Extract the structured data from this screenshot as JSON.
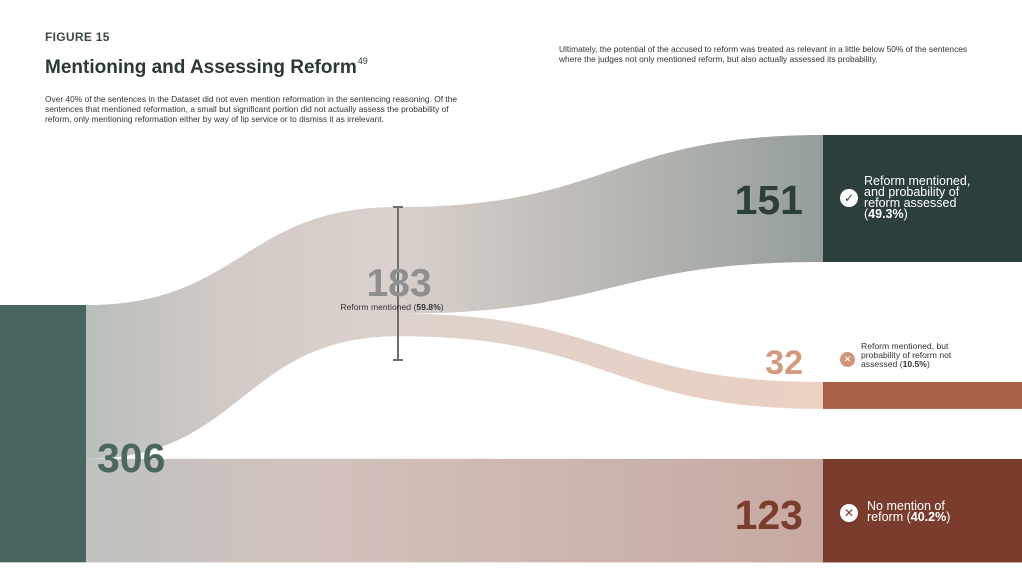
{
  "figure_label": "FIGURE 15",
  "title": "Mentioning and Assessing Reform",
  "title_footnote": "49",
  "intro_text": "Over 40% of the sentences in the Dataset did not even mention reformation in the sentencing reasoning. Of the sentences that mentioned reformation, a small but significant portion did not actually assess the probability of reform, only mentioning reformation either by way of lip service or to dismiss it as irrelevant.",
  "note_text": "Ultimately, the potential of the accused to reform was treated as relevant in a little below 50% of the sentences where the judges not only mentioned reform, but also actually assessed its probability.",
  "colors": {
    "total": "#48665f",
    "mentioned": "#d8cdc8",
    "assessed": "#2d3f3d",
    "not_assessed": "#a85f46",
    "no_mention": "#7a3c2d"
  },
  "chart_data": {
    "type": "sankey",
    "title": "Mentioning and Assessing Reform",
    "nodes": [
      {
        "id": "total",
        "value": 306,
        "value_label": "306"
      },
      {
        "id": "mentioned",
        "value": 183,
        "value_label": "183",
        "label": "Reform mentioned (",
        "pct": "59.8%"
      },
      {
        "id": "assessed",
        "value": 151,
        "value_label": "151",
        "label_l1": "Reform mentioned,",
        "label_l2": "and probability of",
        "label_l3": "reform assessed",
        "pct": "49.3%"
      },
      {
        "id": "not_assessed",
        "value": 32,
        "value_label": "32",
        "label_l1": "Reform mentioned, but",
        "label_l2": "probability of reform not",
        "label_l3": "assessed (",
        "pct": "10.5%"
      },
      {
        "id": "no_mention",
        "value": 123,
        "value_label": "123",
        "label_l1": "No mention of",
        "label_l2": "reform (",
        "pct": "40.2%"
      }
    ],
    "links": [
      {
        "source": "total",
        "target": "mentioned",
        "value": 183
      },
      {
        "source": "total",
        "target": "no_mention",
        "value": 123
      },
      {
        "source": "mentioned",
        "target": "assessed",
        "value": 151
      },
      {
        "source": "mentioned",
        "target": "not_assessed",
        "value": 32
      }
    ]
  }
}
